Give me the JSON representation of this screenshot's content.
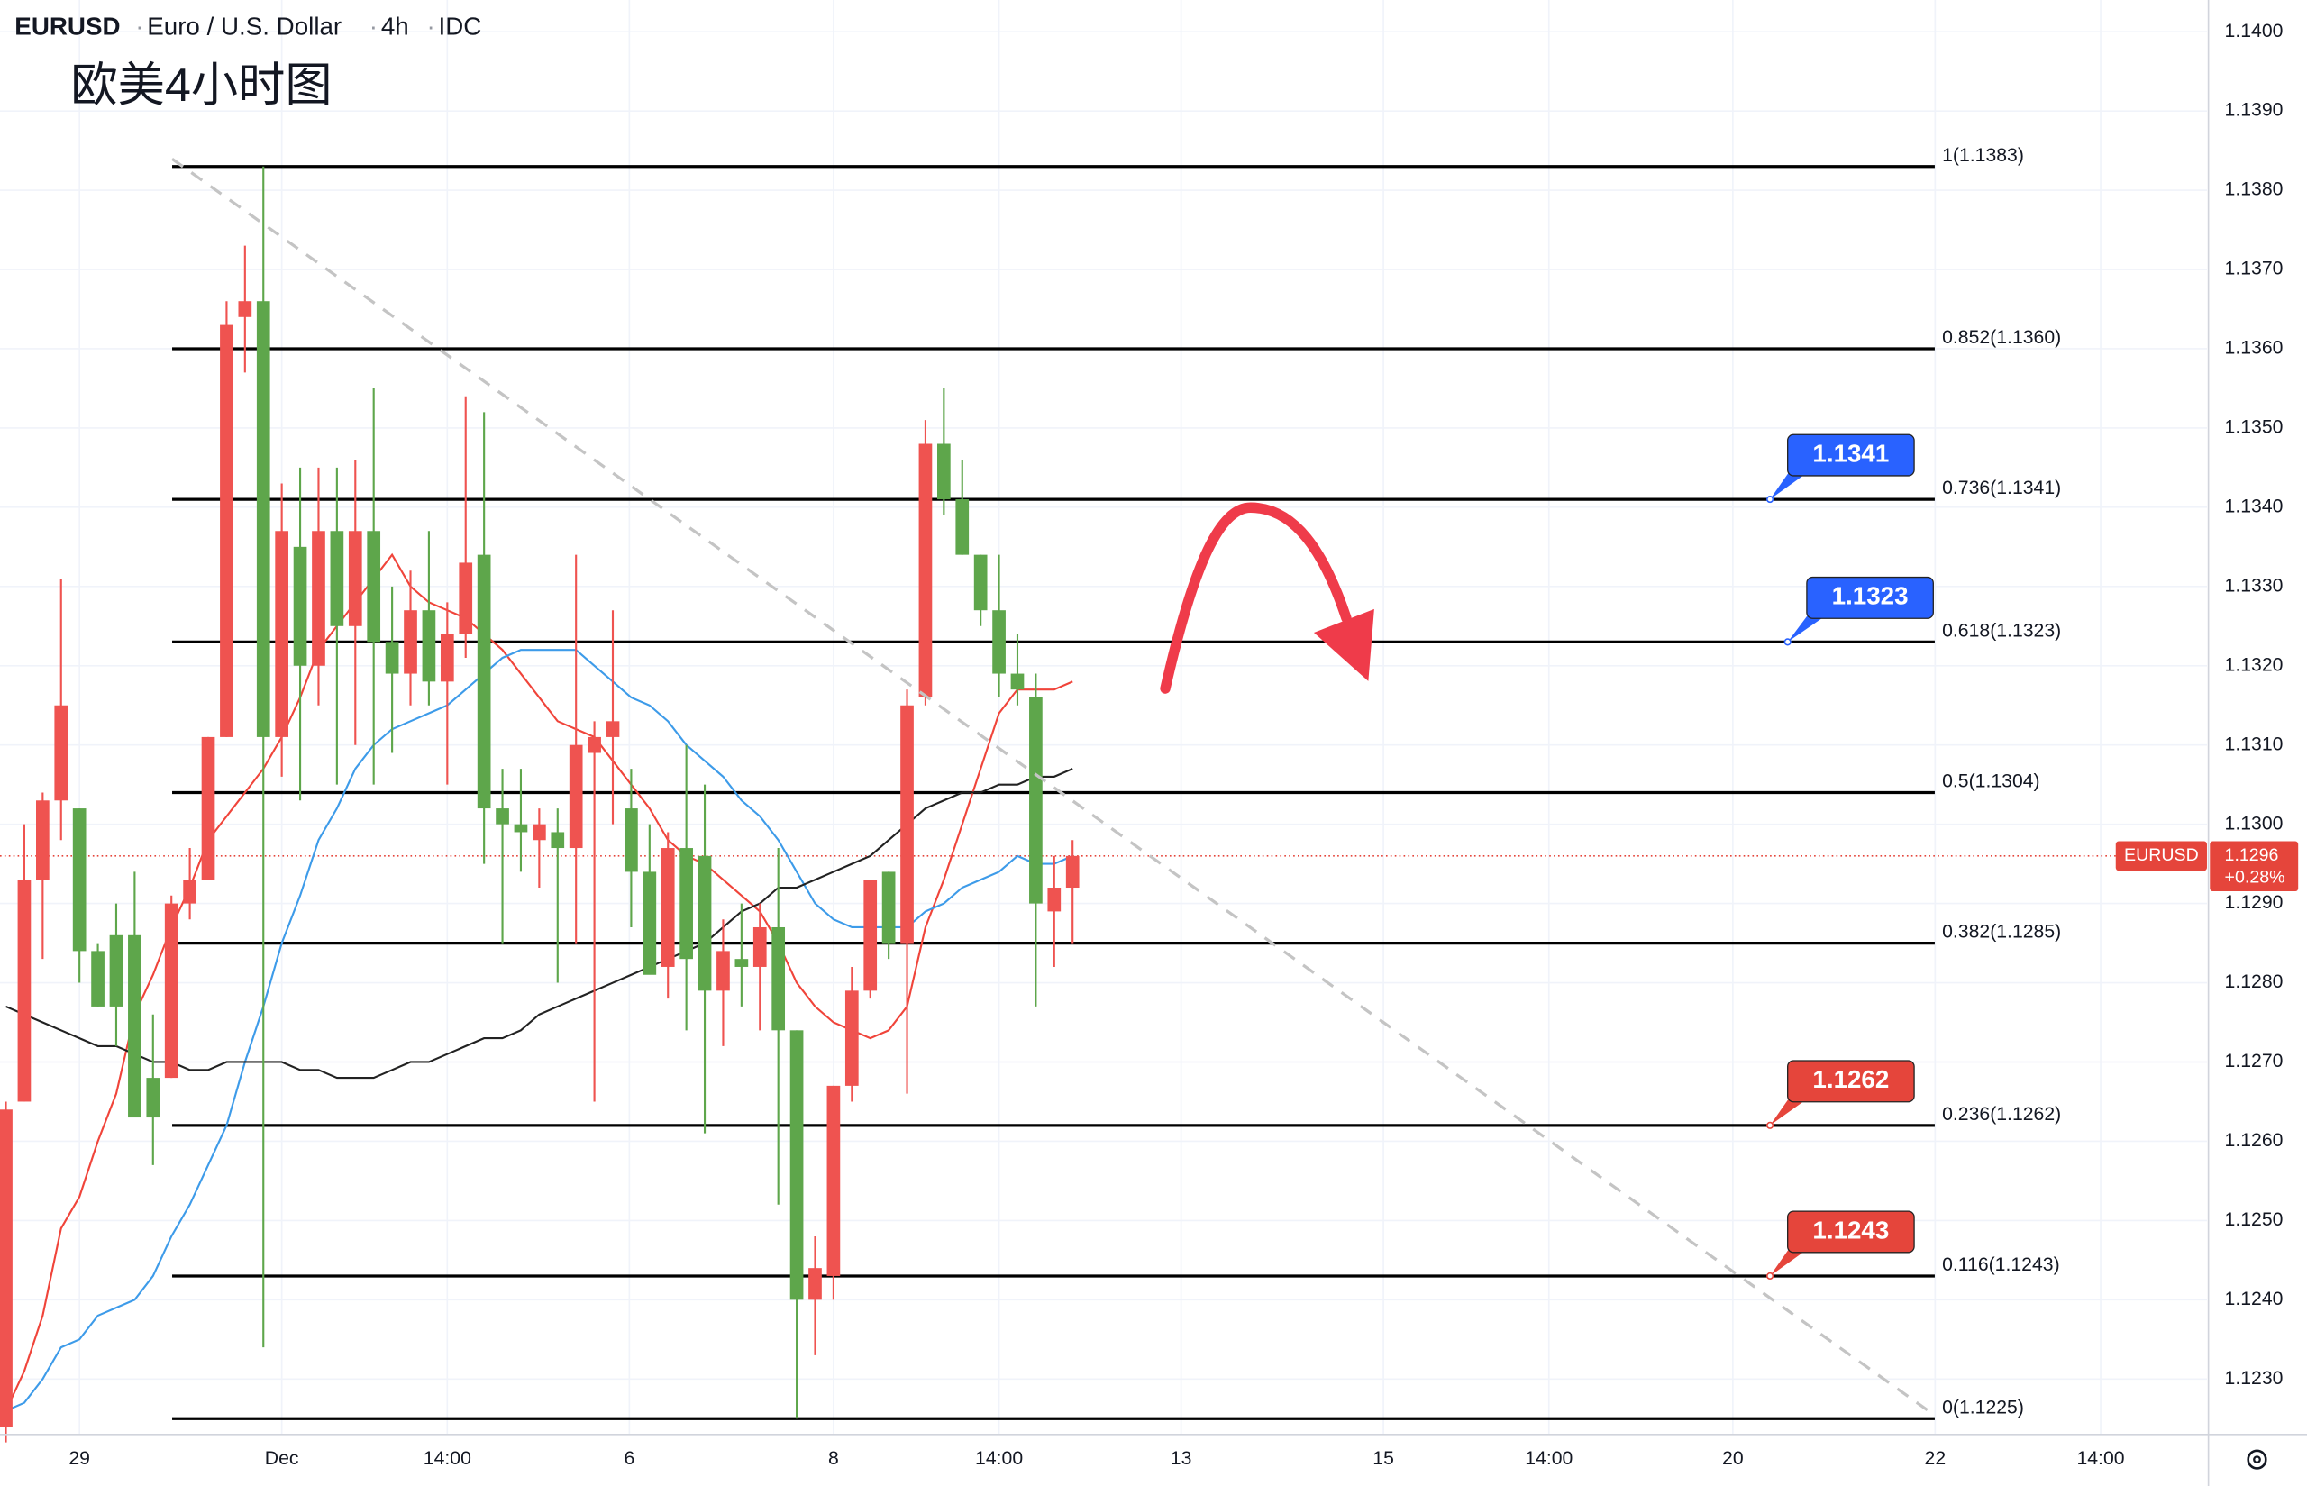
{
  "chart_data": {
    "type": "candlestick",
    "symbol": "EURUSD",
    "description": "Euro / U.S. Dollar",
    "interval": "4h",
    "source": "IDC",
    "annotation": "欧美4小时图",
    "up_color": "#ef5350",
    "down_color": "#5ea64b",
    "ylim": [
      1.1223,
      1.1404
    ],
    "yticks": [
      {
        "value": 1.14,
        "label": "1.1400"
      },
      {
        "value": 1.139,
        "label": "1.1390"
      },
      {
        "value": 1.138,
        "label": "1.1380"
      },
      {
        "value": 1.137,
        "label": "1.1370"
      },
      {
        "value": 1.136,
        "label": "1.1360"
      },
      {
        "value": 1.135,
        "label": "1.1350"
      },
      {
        "value": 1.134,
        "label": "1.1340"
      },
      {
        "value": 1.133,
        "label": "1.1330"
      },
      {
        "value": 1.132,
        "label": "1.1320"
      },
      {
        "value": 1.131,
        "label": "1.1310"
      },
      {
        "value": 1.13,
        "label": "1.1300"
      },
      {
        "value": 1.129,
        "label": "1.1290"
      },
      {
        "value": 1.128,
        "label": "1.1280"
      },
      {
        "value": 1.127,
        "label": "1.1270"
      },
      {
        "value": 1.126,
        "label": "1.1260"
      },
      {
        "value": 1.125,
        "label": "1.1250"
      },
      {
        "value": 1.124,
        "label": "1.1240"
      },
      {
        "value": 1.123,
        "label": "1.1230"
      }
    ],
    "xlim": [
      -0.32,
      119.68
    ],
    "xticks": [
      {
        "value": 4,
        "label": "29"
      },
      {
        "value": 15,
        "label": "Dec"
      },
      {
        "value": 24,
        "label": "14:00"
      },
      {
        "value": 33.9,
        "label": "6"
      },
      {
        "value": 45,
        "label": "8"
      },
      {
        "value": 54,
        "label": "14:00"
      },
      {
        "value": 63.9,
        "label": "13"
      },
      {
        "value": 74.9,
        "label": "15"
      },
      {
        "value": 83.9,
        "label": "14:00"
      },
      {
        "value": 93.9,
        "label": "20"
      },
      {
        "value": 104.9,
        "label": "22"
      },
      {
        "value": 113.9,
        "label": "14:00"
      }
    ],
    "grid": true,
    "ohlc": {
      "open": [
        1.1224,
        1.1265,
        1.1293,
        1.1303,
        1.1302,
        1.1284,
        1.1286,
        1.1286,
        1.1268,
        1.1268,
        1.129,
        1.1293,
        1.1311,
        1.1364,
        1.1366,
        1.1311,
        1.1335,
        1.132,
        1.1337,
        1.1325,
        1.1337,
        1.1323,
        1.1319,
        1.1327,
        1.1318,
        1.1324,
        1.1334,
        1.1302,
        1.13,
        1.1298,
        1.1299,
        1.1297,
        1.1309,
        1.1311,
        1.1302,
        1.1294,
        1.1282,
        1.1297,
        1.1296,
        1.1279,
        1.1283,
        1.1282,
        1.1287,
        1.1274,
        1.124,
        1.1243,
        1.1267,
        1.1279,
        1.1294,
        1.1285,
        1.1316,
        1.1348,
        1.1341,
        1.1334,
        1.1327,
        1.1319,
        1.1316,
        1.1289,
        1.1292
      ],
      "high": [
        1.1265,
        1.13,
        1.1304,
        1.1331,
        1.1302,
        1.1285,
        1.129,
        1.1294,
        1.1276,
        1.1291,
        1.1297,
        1.1311,
        1.1366,
        1.1373,
        1.1383,
        1.1343,
        1.1345,
        1.1345,
        1.1345,
        1.1346,
        1.1355,
        1.133,
        1.1332,
        1.1337,
        1.1328,
        1.1354,
        1.1352,
        1.1307,
        1.1307,
        1.1302,
        1.1302,
        1.1334,
        1.1313,
        1.1327,
        1.1307,
        1.13,
        1.1299,
        1.131,
        1.1305,
        1.1288,
        1.129,
        1.129,
        1.1297,
        1.1274,
        1.1248,
        1.1267,
        1.1282,
        1.1293,
        1.1294,
        1.1317,
        1.1351,
        1.1355,
        1.1346,
        1.1334,
        1.1334,
        1.1324,
        1.1319,
        1.1296,
        1.1298
      ],
      "low": [
        1.1222,
        1.1265,
        1.1283,
        1.1298,
        1.128,
        1.1277,
        1.1272,
        1.1263,
        1.1257,
        1.1268,
        1.1288,
        1.1293,
        1.1311,
        1.1357,
        1.1234,
        1.1306,
        1.1303,
        1.1315,
        1.1305,
        1.131,
        1.1305,
        1.1309,
        1.1315,
        1.1315,
        1.1305,
        1.1321,
        1.1295,
        1.1285,
        1.1294,
        1.1292,
        1.128,
        1.1285,
        1.1265,
        1.13,
        1.1287,
        1.1282,
        1.1278,
        1.1274,
        1.1261,
        1.1272,
        1.1277,
        1.1274,
        1.1252,
        1.1225,
        1.1233,
        1.124,
        1.1265,
        1.1278,
        1.1283,
        1.1266,
        1.1315,
        1.1339,
        1.1334,
        1.1325,
        1.1316,
        1.1315,
        1.1277,
        1.1282,
        1.1285
      ],
      "close": [
        1.1264,
        1.1293,
        1.1303,
        1.1315,
        1.1284,
        1.1277,
        1.1277,
        1.1263,
        1.1263,
        1.129,
        1.1293,
        1.1311,
        1.1363,
        1.1366,
        1.1311,
        1.1337,
        1.132,
        1.1337,
        1.1325,
        1.1337,
        1.1323,
        1.1319,
        1.1327,
        1.1318,
        1.1324,
        1.1333,
        1.1302,
        1.13,
        1.1299,
        1.13,
        1.1297,
        1.131,
        1.1311,
        1.1313,
        1.1294,
        1.1281,
        1.1297,
        1.1283,
        1.1279,
        1.1284,
        1.1282,
        1.1287,
        1.1274,
        1.124,
        1.1244,
        1.1267,
        1.1279,
        1.1293,
        1.1285,
        1.1315,
        1.1348,
        1.1341,
        1.1334,
        1.1327,
        1.1319,
        1.1317,
        1.129,
        1.1292,
        1.1296
      ]
    },
    "overlays": [
      {
        "color": "#f0443a",
        "values": [
          1.1226,
          1.1231,
          1.1238,
          1.1249,
          1.1253,
          1.126,
          1.1266,
          1.1276,
          1.1281,
          1.1287,
          1.1292,
          1.1298,
          1.1301,
          1.1304,
          1.1307,
          1.1311,
          1.1316,
          1.1322,
          1.1325,
          1.1328,
          1.1331,
          1.1334,
          1.133,
          1.1328,
          1.1327,
          1.1326,
          1.1324,
          1.1322,
          1.1319,
          1.1316,
          1.1313,
          1.1312,
          1.1311,
          1.1308,
          1.1305,
          1.1302,
          1.1298,
          1.1296,
          1.1295,
          1.1293,
          1.1291,
          1.1289,
          1.1285,
          1.128,
          1.1277,
          1.1275,
          1.1274,
          1.1273,
          1.1274,
          1.1277,
          1.1287,
          1.1293,
          1.13,
          1.1307,
          1.1314,
          1.1317,
          1.1317,
          1.1317,
          1.1318
        ]
      },
      {
        "color": "#3d9be9",
        "values": [
          1.1226,
          1.1227,
          1.123,
          1.1234,
          1.1235,
          1.1238,
          1.1239,
          1.124,
          1.1243,
          1.1248,
          1.1252,
          1.1257,
          1.1262,
          1.127,
          1.1277,
          1.1285,
          1.1291,
          1.1298,
          1.1302,
          1.1307,
          1.131,
          1.1312,
          1.1313,
          1.1314,
          1.1315,
          1.1317,
          1.1319,
          1.1321,
          1.1322,
          1.1322,
          1.1322,
          1.1322,
          1.132,
          1.1318,
          1.1316,
          1.1315,
          1.1313,
          1.131,
          1.1308,
          1.1306,
          1.1303,
          1.1301,
          1.1298,
          1.1294,
          1.129,
          1.1288,
          1.1287,
          1.1287,
          1.1287,
          1.1287,
          1.1289,
          1.129,
          1.1292,
          1.1293,
          1.1294,
          1.1296,
          1.1295,
          1.1295,
          1.1296
        ]
      },
      {
        "color": "#222222",
        "values": [
          1.1277,
          1.1276,
          1.1275,
          1.1274,
          1.1273,
          1.1272,
          1.1272,
          1.1271,
          1.127,
          1.127,
          1.1269,
          1.1269,
          1.127,
          1.127,
          1.127,
          1.127,
          1.1269,
          1.1269,
          1.1268,
          1.1268,
          1.1268,
          1.1269,
          1.127,
          1.127,
          1.1271,
          1.1272,
          1.1273,
          1.1273,
          1.1274,
          1.1276,
          1.1277,
          1.1278,
          1.1279,
          1.128,
          1.1281,
          1.1282,
          1.1283,
          1.1284,
          1.1285,
          1.1287,
          1.1289,
          1.129,
          1.1292,
          1.1292,
          1.1293,
          1.1294,
          1.1295,
          1.1296,
          1.1298,
          1.13,
          1.1302,
          1.1303,
          1.1304,
          1.1304,
          1.1305,
          1.1305,
          1.1306,
          1.1306,
          1.1307
        ]
      }
    ],
    "fib_levels": [
      {
        "value": 1.1383,
        "label": "1(1.1383)"
      },
      {
        "value": 1.136,
        "label": "0.852(1.1360)"
      },
      {
        "value": 1.1341,
        "label": "0.736(1.1341)"
      },
      {
        "value": 1.1323,
        "label": "0.618(1.1323)"
      },
      {
        "value": 1.1304,
        "label": "0.5(1.1304)"
      },
      {
        "value": 1.1285,
        "label": "0.382(1.1285)"
      },
      {
        "value": 1.1262,
        "label": "0.236(1.1262)"
      },
      {
        "value": 1.1243,
        "label": "0.116(1.1243)"
      },
      {
        "value": 1.1225,
        "label": "0(1.1225)"
      }
    ],
    "price_tags": [
      {
        "value": 1.1341,
        "color": "#2962ff"
      },
      {
        "value": 1.1323,
        "color": "#2962ff"
      },
      {
        "value": 1.1262,
        "color": "#e5453b"
      },
      {
        "value": 1.1243,
        "color": "#e5453b"
      }
    ],
    "last_price": 1.1296,
    "change_label": "+0.28%",
    "last_price_color": "#e5453b"
  }
}
